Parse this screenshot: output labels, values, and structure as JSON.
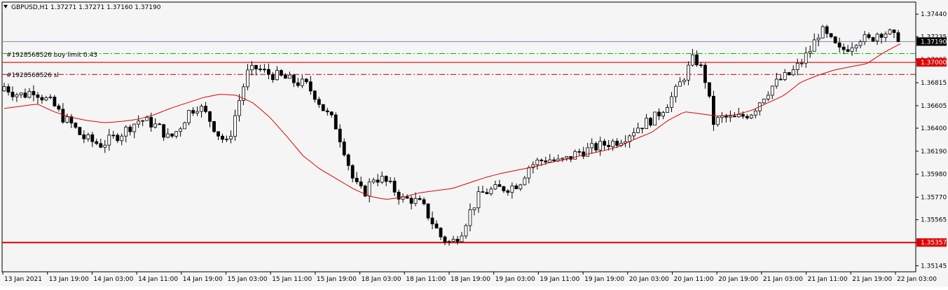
{
  "header": {
    "menu_icon": "triangle-down-icon",
    "title": "GBPUSD,H1  1.37271 1.37271 1.37160 1.37190"
  },
  "colors": {
    "background": "#f5f5f5",
    "bull_candle": "#ffffff",
    "bear_candle": "#000000",
    "moving_average": "#e00000",
    "horizontal_level": "#e00000",
    "buy_limit_line": "#00bb00",
    "sl_line": "#c00000",
    "bid_line": "#7a8aa6",
    "label_red": "#e00000",
    "label_black": "#000000"
  },
  "order_labels": {
    "buy_limit": "#1928568526 buy limit 0.43",
    "sl": "#1928568526 sl"
  },
  "price_tags": {
    "current": "1.37190",
    "level_upper": "1.37000",
    "level_lower": "1.35357"
  },
  "chart_data": {
    "type": "candlestick",
    "symbol": "GBPUSD",
    "timeframe": "H1",
    "ohlc_header": {
      "open": 1.37271,
      "high": 1.37271,
      "low": 1.3716,
      "close": 1.3719
    },
    "ylim": [
      1.3509,
      1.3755
    ],
    "y_ticks": [
      "1.37440",
      "1.37235",
      "1.37025",
      "1.36815",
      "1.36605",
      "1.36400",
      "1.36190",
      "1.35980",
      "1.35770",
      "1.35565",
      "1.35355",
      "1.35145"
    ],
    "x_ticks": [
      "13 Jan 2021",
      "13 Jan 19:00",
      "14 Jan 03:00",
      "14 Jan 11:00",
      "14 Jan 19:00",
      "15 Jan 03:00",
      "15 Jan 11:00",
      "15 Jan 19:00",
      "18 Jan 03:00",
      "18 Jan 11:00",
      "18 Jan 19:00",
      "19 Jan 03:00",
      "19 Jan 11:00",
      "19 Jan 19:00",
      "20 Jan 03:00",
      "20 Jan 11:00",
      "20 Jan 19:00",
      "21 Jan 03:00",
      "21 Jan 11:00",
      "21 Jan 19:00",
      "22 Jan 03:00"
    ],
    "levels": {
      "bid": 1.3719,
      "horizontal_upper": 1.37,
      "buy_limit": 1.3708,
      "stop_loss": 1.3689,
      "horizontal_lower": 1.35357
    },
    "close_anchors": [
      1.3678,
      1.3672,
      1.367,
      1.3675,
      1.3668,
      1.3662,
      1.365,
      1.3643,
      1.3632,
      1.3628,
      1.3625,
      1.363,
      1.3635,
      1.3642,
      1.3648,
      1.3645,
      1.364,
      1.363,
      1.364,
      1.3655,
      1.3661,
      1.365,
      1.3635,
      1.3625,
      1.366,
      1.369,
      1.3695,
      1.369,
      1.3688,
      1.3685,
      1.3682,
      1.368,
      1.367,
      1.3655,
      1.3645,
      1.362,
      1.359,
      1.358,
      1.3595,
      1.3593,
      1.3585,
      1.3575,
      1.3575,
      1.357,
      1.3555,
      1.354,
      1.3535,
      1.3545,
      1.3565,
      1.358,
      1.3583,
      1.3585,
      1.3586,
      1.359,
      1.3605,
      1.361,
      1.3612,
      1.3609,
      1.3612,
      1.3618,
      1.362,
      1.3623,
      1.3626,
      1.3628,
      1.3633,
      1.364,
      1.3645,
      1.365,
      1.366,
      1.3672,
      1.3688,
      1.3705,
      1.369,
      1.3645,
      1.365,
      1.3648,
      1.3651,
      1.3655,
      1.3668,
      1.3678,
      1.3685,
      1.369,
      1.37,
      1.3712,
      1.373,
      1.372,
      1.371,
      1.3715,
      1.3723,
      1.372,
      1.3728,
      1.3727,
      1.3719
    ],
    "ma_anchors": [
      1.3658,
      1.366,
      1.3662,
      1.3655,
      1.365,
      1.3647,
      1.3645,
      1.3646,
      1.3648,
      1.3652,
      1.3658,
      1.3663,
      1.3668,
      1.3671,
      1.367,
      1.3663,
      1.365,
      1.3633,
      1.3615,
      1.3603,
      1.3594,
      1.3585,
      1.3578,
      1.3575,
      1.3577,
      1.3581,
      1.3583,
      1.3585,
      1.359,
      1.3595,
      1.3599,
      1.3602,
      1.3605,
      1.3609,
      1.3612,
      1.3616,
      1.3619,
      1.3623,
      1.363,
      1.3636,
      1.3647,
      1.3655,
      1.3653,
      1.3651,
      1.3652,
      1.3656,
      1.3663,
      1.367,
      1.3682,
      1.3688,
      1.3693,
      1.3696,
      1.3699,
      1.3709,
      1.3717
    ]
  }
}
